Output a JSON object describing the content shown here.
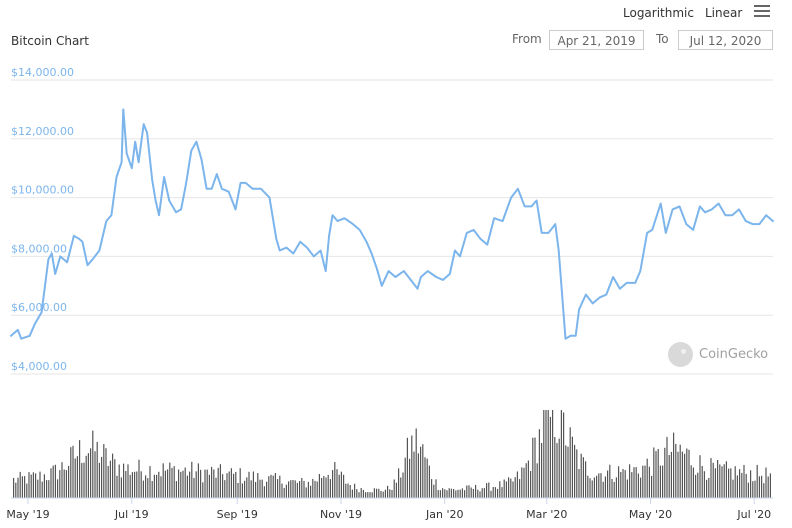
{
  "header": {
    "title": "Bitcoin Chart",
    "scale_log_label": "Logarithmic",
    "scale_linear_label": "Linear",
    "from_label": "From",
    "from_value": "Apr 21, 2019",
    "to_label": "To",
    "to_value": "Jul 12, 2020",
    "watermark": "CoinGecko"
  },
  "chart_data": {
    "type": "line",
    "title": "Bitcoin Chart",
    "xlabel": "",
    "ylabel": "",
    "ylim": [
      4000,
      14000
    ],
    "yticks": [
      4000,
      6000,
      8000,
      10000,
      12000,
      14000
    ],
    "ytick_labels": [
      "$4,000.00",
      "$6,000.00",
      "$8,000.00",
      "$10,000.00",
      "$12,000.00",
      "$14,000.00"
    ],
    "xlim": [
      "2019-04-21",
      "2020-07-12"
    ],
    "xticks": [
      {
        "date": "2019-05-01",
        "label": "May '19"
      },
      {
        "date": "2019-07-01",
        "label": "Jul '19"
      },
      {
        "date": "2019-09-01",
        "label": "Sep '19"
      },
      {
        "date": "2019-11-01",
        "label": "Nov '19"
      },
      {
        "date": "2020-01-01",
        "label": "Jan '20"
      },
      {
        "date": "2020-03-01",
        "label": "Mar '20"
      },
      {
        "date": "2020-05-01",
        "label": "May '20"
      },
      {
        "date": "2020-07-01",
        "label": "Jul '20"
      }
    ],
    "grid": true,
    "line_color": "#7cb5ec",
    "volume_color": "#555555",
    "series": [
      {
        "values": [
          [
            "2019-04-21",
            5300
          ],
          [
            "2019-04-25",
            5500
          ],
          [
            "2019-04-27",
            5200
          ],
          [
            "2019-05-02",
            5300
          ],
          [
            "2019-05-05",
            5700
          ],
          [
            "2019-05-09",
            6100
          ],
          [
            "2019-05-11",
            7000
          ],
          [
            "2019-05-13",
            7900
          ],
          [
            "2019-05-15",
            8100
          ],
          [
            "2019-05-17",
            7400
          ],
          [
            "2019-05-20",
            8000
          ],
          [
            "2019-05-24",
            7800
          ],
          [
            "2019-05-28",
            8700
          ],
          [
            "2019-05-31",
            8600
          ],
          [
            "2019-06-02",
            8500
          ],
          [
            "2019-06-05",
            7700
          ],
          [
            "2019-06-08",
            7900
          ],
          [
            "2019-06-12",
            8200
          ],
          [
            "2019-06-16",
            9200
          ],
          [
            "2019-06-19",
            9400
          ],
          [
            "2019-06-22",
            10700
          ],
          [
            "2019-06-25",
            11200
          ],
          [
            "2019-06-26",
            13000
          ],
          [
            "2019-06-28",
            11500
          ],
          [
            "2019-07-01",
            11000
          ],
          [
            "2019-07-03",
            11900
          ],
          [
            "2019-07-05",
            11200
          ],
          [
            "2019-07-08",
            12500
          ],
          [
            "2019-07-10",
            12200
          ],
          [
            "2019-07-13",
            10600
          ],
          [
            "2019-07-15",
            9900
          ],
          [
            "2019-07-17",
            9400
          ],
          [
            "2019-07-20",
            10700
          ],
          [
            "2019-07-23",
            9900
          ],
          [
            "2019-07-27",
            9500
          ],
          [
            "2019-07-30",
            9600
          ],
          [
            "2019-08-02",
            10500
          ],
          [
            "2019-08-05",
            11600
          ],
          [
            "2019-08-08",
            11900
          ],
          [
            "2019-08-11",
            11300
          ],
          [
            "2019-08-14",
            10300
          ],
          [
            "2019-08-17",
            10300
          ],
          [
            "2019-08-20",
            10800
          ],
          [
            "2019-08-23",
            10300
          ],
          [
            "2019-08-27",
            10200
          ],
          [
            "2019-08-31",
            9600
          ],
          [
            "2019-09-03",
            10500
          ],
          [
            "2019-09-06",
            10500
          ],
          [
            "2019-09-10",
            10300
          ],
          [
            "2019-09-15",
            10300
          ],
          [
            "2019-09-20",
            10000
          ],
          [
            "2019-09-24",
            8600
          ],
          [
            "2019-09-26",
            8200
          ],
          [
            "2019-09-30",
            8300
          ],
          [
            "2019-10-04",
            8100
          ],
          [
            "2019-10-08",
            8500
          ],
          [
            "2019-10-12",
            8300
          ],
          [
            "2019-10-16",
            8000
          ],
          [
            "2019-10-20",
            8200
          ],
          [
            "2019-10-23",
            7500
          ],
          [
            "2019-10-25",
            8700
          ],
          [
            "2019-10-27",
            9400
          ],
          [
            "2019-10-30",
            9200
          ],
          [
            "2019-11-03",
            9300
          ],
          [
            "2019-11-08",
            9100
          ],
          [
            "2019-11-12",
            8900
          ],
          [
            "2019-11-16",
            8500
          ],
          [
            "2019-11-19",
            8100
          ],
          [
            "2019-11-22",
            7600
          ],
          [
            "2019-11-25",
            7000
          ],
          [
            "2019-11-29",
            7500
          ],
          [
            "2019-12-03",
            7300
          ],
          [
            "2019-12-08",
            7500
          ],
          [
            "2019-12-12",
            7200
          ],
          [
            "2019-12-16",
            6900
          ],
          [
            "2019-12-18",
            7300
          ],
          [
            "2019-12-22",
            7500
          ],
          [
            "2019-12-27",
            7300
          ],
          [
            "2019-12-31",
            7200
          ],
          [
            "2020-01-04",
            7400
          ],
          [
            "2020-01-07",
            8200
          ],
          [
            "2020-01-10",
            8000
          ],
          [
            "2020-01-14",
            8800
          ],
          [
            "2020-01-18",
            8900
          ],
          [
            "2020-01-22",
            8600
          ],
          [
            "2020-01-26",
            8400
          ],
          [
            "2020-01-30",
            9300
          ],
          [
            "2020-02-04",
            9200
          ],
          [
            "2020-02-09",
            10000
          ],
          [
            "2020-02-13",
            10300
          ],
          [
            "2020-02-17",
            9700
          ],
          [
            "2020-02-21",
            9700
          ],
          [
            "2020-02-24",
            9900
          ],
          [
            "2020-02-27",
            8800
          ],
          [
            "2020-03-02",
            8800
          ],
          [
            "2020-03-06",
            9100
          ],
          [
            "2020-03-08",
            8200
          ],
          [
            "2020-03-12",
            5200
          ],
          [
            "2020-03-15",
            5300
          ],
          [
            "2020-03-18",
            5300
          ],
          [
            "2020-03-20",
            6200
          ],
          [
            "2020-03-24",
            6700
          ],
          [
            "2020-03-28",
            6400
          ],
          [
            "2020-04-01",
            6600
          ],
          [
            "2020-04-05",
            6700
          ],
          [
            "2020-04-09",
            7300
          ],
          [
            "2020-04-13",
            6900
          ],
          [
            "2020-04-17",
            7100
          ],
          [
            "2020-04-22",
            7100
          ],
          [
            "2020-04-25",
            7500
          ],
          [
            "2020-04-29",
            8800
          ],
          [
            "2020-05-02",
            8900
          ],
          [
            "2020-05-07",
            9800
          ],
          [
            "2020-05-10",
            8800
          ],
          [
            "2020-05-14",
            9600
          ],
          [
            "2020-05-18",
            9700
          ],
          [
            "2020-05-22",
            9100
          ],
          [
            "2020-05-26",
            8900
          ],
          [
            "2020-05-30",
            9700
          ],
          [
            "2020-06-02",
            9500
          ],
          [
            "2020-06-06",
            9600
          ],
          [
            "2020-06-10",
            9800
          ],
          [
            "2020-06-14",
            9400
          ],
          [
            "2020-06-18",
            9400
          ],
          [
            "2020-06-22",
            9600
          ],
          [
            "2020-06-26",
            9200
          ],
          [
            "2020-06-30",
            9100
          ],
          [
            "2020-07-04",
            9100
          ],
          [
            "2020-07-08",
            9400
          ],
          [
            "2020-07-12",
            9200
          ]
        ]
      }
    ],
    "volume_range": [
      0,
      70
    ]
  }
}
